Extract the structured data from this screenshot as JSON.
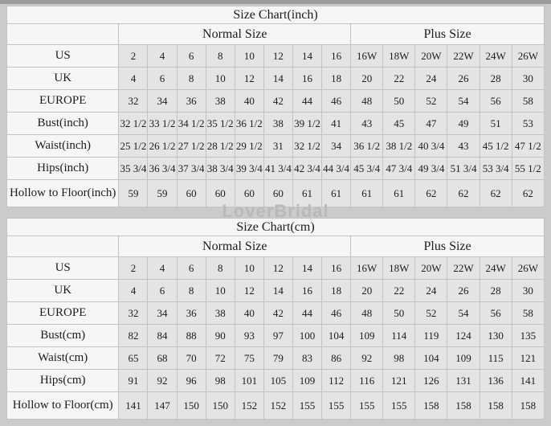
{
  "watermark": "LoverBridal",
  "colors": {
    "page_background": "#cbcbcb",
    "top_strip": "#9c9c9c",
    "header_cell_background": "#f6f6f6",
    "data_cell_background": "#e4e4e4",
    "grid_line": "#c3c3c3",
    "text": "#1c1c1c",
    "watermark_text": "#b9b9b9"
  },
  "tables": [
    {
      "title": "Size Chart(inch)",
      "groups": [
        {
          "label": "Normal Size",
          "span": 8
        },
        {
          "label": "Plus Size",
          "span": 6
        }
      ],
      "rows": [
        {
          "label": "US",
          "values": [
            "2",
            "4",
            "6",
            "8",
            "10",
            "12",
            "14",
            "16",
            "16W",
            "18W",
            "20W",
            "22W",
            "24W",
            "26W"
          ]
        },
        {
          "label": "UK",
          "values": [
            "4",
            "6",
            "8",
            "10",
            "12",
            "14",
            "16",
            "18",
            "20",
            "22",
            "24",
            "26",
            "28",
            "30"
          ]
        },
        {
          "label": "EUROPE",
          "values": [
            "32",
            "34",
            "36",
            "38",
            "40",
            "42",
            "44",
            "46",
            "48",
            "50",
            "52",
            "54",
            "56",
            "58"
          ]
        },
        {
          "label": "Bust(inch)",
          "values": [
            "32 1/2",
            "33 1/2",
            "34 1/2",
            "35 1/2",
            "36 1/2",
            "38",
            "39 1/2",
            "41",
            "43",
            "45",
            "47",
            "49",
            "51",
            "53"
          ]
        },
        {
          "label": "Waist(inch)",
          "values": [
            "25 1/2",
            "26 1/2",
            "27 1/2",
            "28 1/2",
            "29 1/2",
            "31",
            "32 1/2",
            "34",
            "36 1/2",
            "38 1/2",
            "40 3/4",
            "43",
            "45 1/2",
            "47 1/2"
          ]
        },
        {
          "label": "Hips(inch)",
          "values": [
            "35 3/4",
            "36 3/4",
            "37 3/4",
            "38 3/4",
            "39 3/4",
            "41 3/4",
            "42 3/4",
            "44 3/4",
            "45 3/4",
            "47 3/4",
            "49 3/4",
            "51 3/4",
            "53 3/4",
            "55 1/2"
          ]
        },
        {
          "label": "Hollow to Floor(inch)",
          "values": [
            "59",
            "59",
            "60",
            "60",
            "60",
            "60",
            "61",
            "61",
            "61",
            "61",
            "62",
            "62",
            "62",
            "62"
          ]
        }
      ]
    },
    {
      "title": "Size Chart(cm)",
      "groups": [
        {
          "label": "Normal Size",
          "span": 8
        },
        {
          "label": "Plus Size",
          "span": 6
        }
      ],
      "rows": [
        {
          "label": "US",
          "values": [
            "2",
            "4",
            "6",
            "8",
            "10",
            "12",
            "14",
            "16",
            "16W",
            "18W",
            "20W",
            "22W",
            "24W",
            "26W"
          ]
        },
        {
          "label": "UK",
          "values": [
            "4",
            "6",
            "8",
            "10",
            "12",
            "14",
            "16",
            "18",
            "20",
            "22",
            "24",
            "26",
            "28",
            "30"
          ]
        },
        {
          "label": "EUROPE",
          "values": [
            "32",
            "34",
            "36",
            "38",
            "40",
            "42",
            "44",
            "46",
            "48",
            "50",
            "52",
            "54",
            "56",
            "58"
          ]
        },
        {
          "label": "Bust(cm)",
          "values": [
            "82",
            "84",
            "88",
            "90",
            "93",
            "97",
            "100",
            "104",
            "109",
            "114",
            "119",
            "124",
            "130",
            "135"
          ]
        },
        {
          "label": "Waist(cm)",
          "values": [
            "65",
            "68",
            "70",
            "72",
            "75",
            "79",
            "83",
            "86",
            "92",
            "98",
            "104",
            "109",
            "115",
            "121"
          ]
        },
        {
          "label": "Hips(cm)",
          "values": [
            "91",
            "92",
            "96",
            "98",
            "101",
            "105",
            "109",
            "112",
            "116",
            "121",
            "126",
            "131",
            "136",
            "141"
          ]
        },
        {
          "label": "Hollow to Floor(cm)",
          "values": [
            "141",
            "147",
            "150",
            "150",
            "152",
            "152",
            "155",
            "155",
            "155",
            "155",
            "158",
            "158",
            "158",
            "158"
          ]
        }
      ]
    }
  ]
}
